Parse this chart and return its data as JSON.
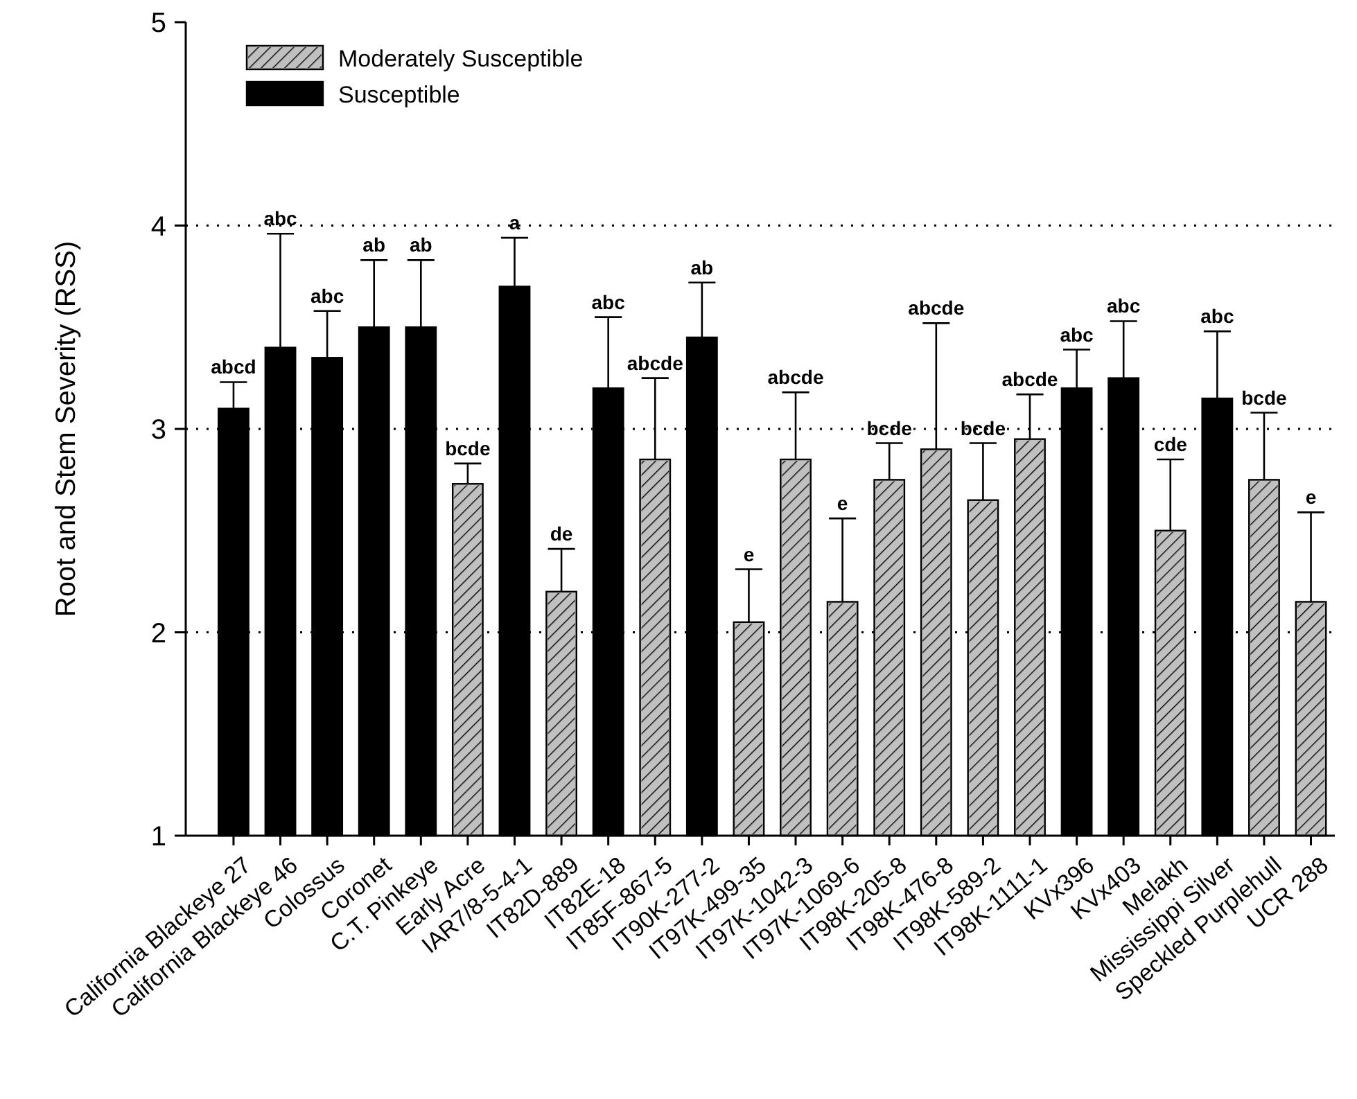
{
  "chart_data": {
    "type": "bar",
    "ylabel": "Root and Stem Severity (RSS)",
    "categories": [
      "California Blackeye 27",
      "California Blackeye 46",
      "Colossus",
      "Coronet",
      "C.T. Pinkeye",
      "Early Acre",
      "IAR7/8-5-4-1",
      "IT82D-889",
      "IT82E-18",
      "IT85F-867-5",
      "IT90K-277-2",
      "IT97K-499-35",
      "IT97K-1042-3",
      "IT97K-1069-6",
      "IT98K-205-8",
      "IT98K-476-8",
      "IT98K-589-2",
      "IT98K-1111-1",
      "KVx396",
      "KVx403",
      "Melakh",
      "Mississippi Silver",
      "Speckled Purplehull",
      "UCR 288"
    ],
    "series": [
      {
        "name": "Moderately Susceptible",
        "color": "#c0c0c0",
        "values": [
          null,
          null,
          null,
          null,
          null,
          2.73,
          null,
          2.2,
          null,
          2.85,
          null,
          2.05,
          2.85,
          2.15,
          2.75,
          2.9,
          2.65,
          2.95,
          null,
          null,
          2.5,
          null,
          2.75,
          2.15
        ],
        "errors": [
          null,
          null,
          null,
          null,
          null,
          [
            2.73,
            2.83
          ],
          null,
          [
            2.2,
            2.41
          ],
          null,
          [
            2.85,
            3.25
          ],
          null,
          [
            2.05,
            2.31
          ],
          [
            2.85,
            3.18
          ],
          [
            2.15,
            2.56
          ],
          [
            2.75,
            2.93
          ],
          [
            2.9,
            3.52
          ],
          [
            2.65,
            2.93
          ],
          [
            2.95,
            3.17
          ],
          null,
          null,
          [
            2.5,
            2.85
          ],
          null,
          [
            2.75,
            3.08
          ],
          [
            2.15,
            2.59
          ]
        ]
      },
      {
        "name": "Susceptible",
        "color": "#000000",
        "values": [
          3.1,
          3.4,
          3.35,
          3.5,
          3.5,
          null,
          3.7,
          null,
          3.2,
          null,
          3.45,
          null,
          null,
          null,
          null,
          null,
          null,
          null,
          3.2,
          3.25,
          null,
          3.15,
          null,
          null
        ],
        "errors": [
          [
            3.1,
            3.23
          ],
          [
            3.4,
            3.96
          ],
          [
            3.35,
            3.58
          ],
          [
            3.5,
            3.83
          ],
          [
            3.5,
            3.83
          ],
          null,
          [
            3.7,
            3.94
          ],
          null,
          [
            3.2,
            3.55
          ],
          null,
          [
            3.45,
            3.72
          ],
          null,
          null,
          null,
          null,
          null,
          null,
          null,
          [
            3.2,
            3.39
          ],
          [
            3.25,
            3.53
          ],
          null,
          [
            3.15,
            3.48
          ],
          null,
          null
        ]
      }
    ],
    "annotations": [
      {
        "text": "abcd",
        "x": "California Blackeye 27",
        "y": 3.23
      },
      {
        "text": "abc",
        "x": "California Blackeye 46",
        "y": 3.96
      },
      {
        "text": "abc",
        "x": "Colossus",
        "y": 3.58
      },
      {
        "text": "ab",
        "x": "Coronet",
        "y": 3.83
      },
      {
        "text": "ab",
        "x": "C.T. Pinkeye",
        "y": 3.83
      },
      {
        "text": "bcde",
        "x": "Early Acre",
        "y": 2.83
      },
      {
        "text": "a",
        "x": "IAR7/8-5-4-1",
        "y": 3.94
      },
      {
        "text": "de",
        "x": "IT82D-889",
        "y": 2.41
      },
      {
        "text": "abc",
        "x": "IT82E-18",
        "y": 3.55
      },
      {
        "text": "abcde",
        "x": "IT85F-867-5",
        "y": 3.25
      },
      {
        "text": "ab",
        "x": "IT90K-277-2",
        "y": 3.72
      },
      {
        "text": "e",
        "x": "IT97K-499-35",
        "y": 2.31
      },
      {
        "text": "abcde",
        "x": "IT97K-1042-3",
        "y": 3.18
      },
      {
        "text": "e",
        "x": "IT97K-1069-6",
        "y": 2.56
      },
      {
        "text": "bcde",
        "x": "IT98K-205-8",
        "y": 2.93
      },
      {
        "text": "abcde",
        "x": "IT98K-476-8",
        "y": 3.52
      },
      {
        "text": "bcde",
        "x": "IT98K-589-2",
        "y": 2.93
      },
      {
        "text": "abcde",
        "x": "IT98K-1111-1",
        "y": 3.17
      },
      {
        "text": "abc",
        "x": "KVx396",
        "y": 3.39
      },
      {
        "text": "abc",
        "x": "KVx403",
        "y": 3.53
      },
      {
        "text": "cde",
        "x": "Melakh",
        "y": 2.85
      },
      {
        "text": "abc",
        "x": "Mississippi Silver",
        "y": 3.48
      },
      {
        "text": "bcde",
        "x": "Speckled Purplehull",
        "y": 3.08
      },
      {
        "text": "e",
        "x": "UCR 288",
        "y": 2.59
      }
    ],
    "ylim": [
      1,
      5
    ],
    "yticks": [
      1,
      2,
      3,
      4,
      5
    ],
    "grid": "y",
    "legend": "top left"
  }
}
